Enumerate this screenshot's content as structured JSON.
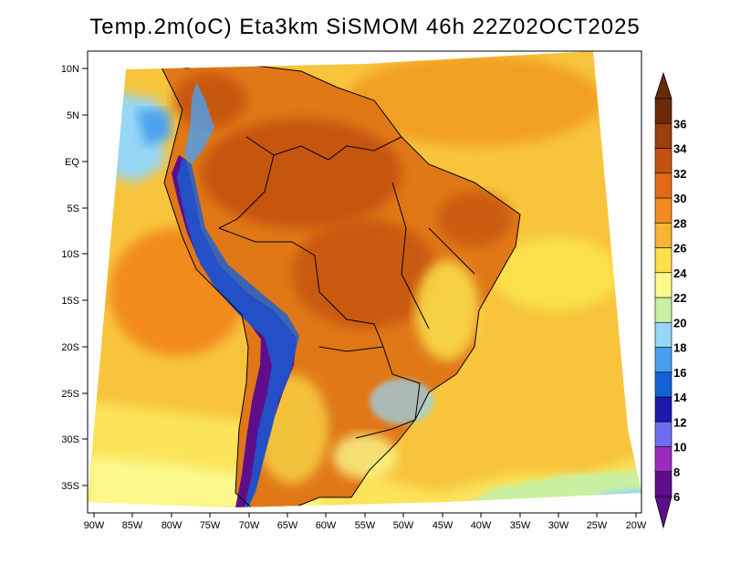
{
  "title": "Temp.2m(oC) Eta3km SiSMOM 46h 22Z02OCT2025",
  "map": {
    "variable": "2 m air temperature",
    "units": "oC",
    "region": "South America / Brazil"
  },
  "axes": {
    "lat_labels": [
      "10N",
      "5N",
      "EQ",
      "5S",
      "10S",
      "15S",
      "20S",
      "25S",
      "30S",
      "35S"
    ],
    "lon_labels": [
      "90W",
      "85W",
      "80W",
      "75W",
      "70W",
      "65W",
      "60W",
      "55W",
      "50W",
      "45W",
      "40W",
      "35W",
      "30W",
      "25W",
      "20W"
    ]
  },
  "colorbar": {
    "labels": [
      "6",
      "8",
      "10",
      "12",
      "14",
      "16",
      "18",
      "20",
      "22",
      "24",
      "26",
      "28",
      "30",
      "32",
      "34",
      "36"
    ],
    "bins": [
      {
        "color": "#5e0e8a"
      },
      {
        "color": "#9a2dbd"
      },
      {
        "color": "#6f6ef0"
      },
      {
        "color": "#1a1ab0"
      },
      {
        "color": "#1460d6"
      },
      {
        "color": "#4aa0f0"
      },
      {
        "color": "#96d6f6"
      },
      {
        "color": "#c8f0a0"
      },
      {
        "color": "#fbf98c"
      },
      {
        "color": "#fbe04b"
      },
      {
        "color": "#f8b432"
      },
      {
        "color": "#f28a1e"
      },
      {
        "color": "#e26a14"
      },
      {
        "color": "#c25010"
      },
      {
        "color": "#98400e"
      },
      {
        "color": "#6a2a0a"
      }
    ]
  }
}
